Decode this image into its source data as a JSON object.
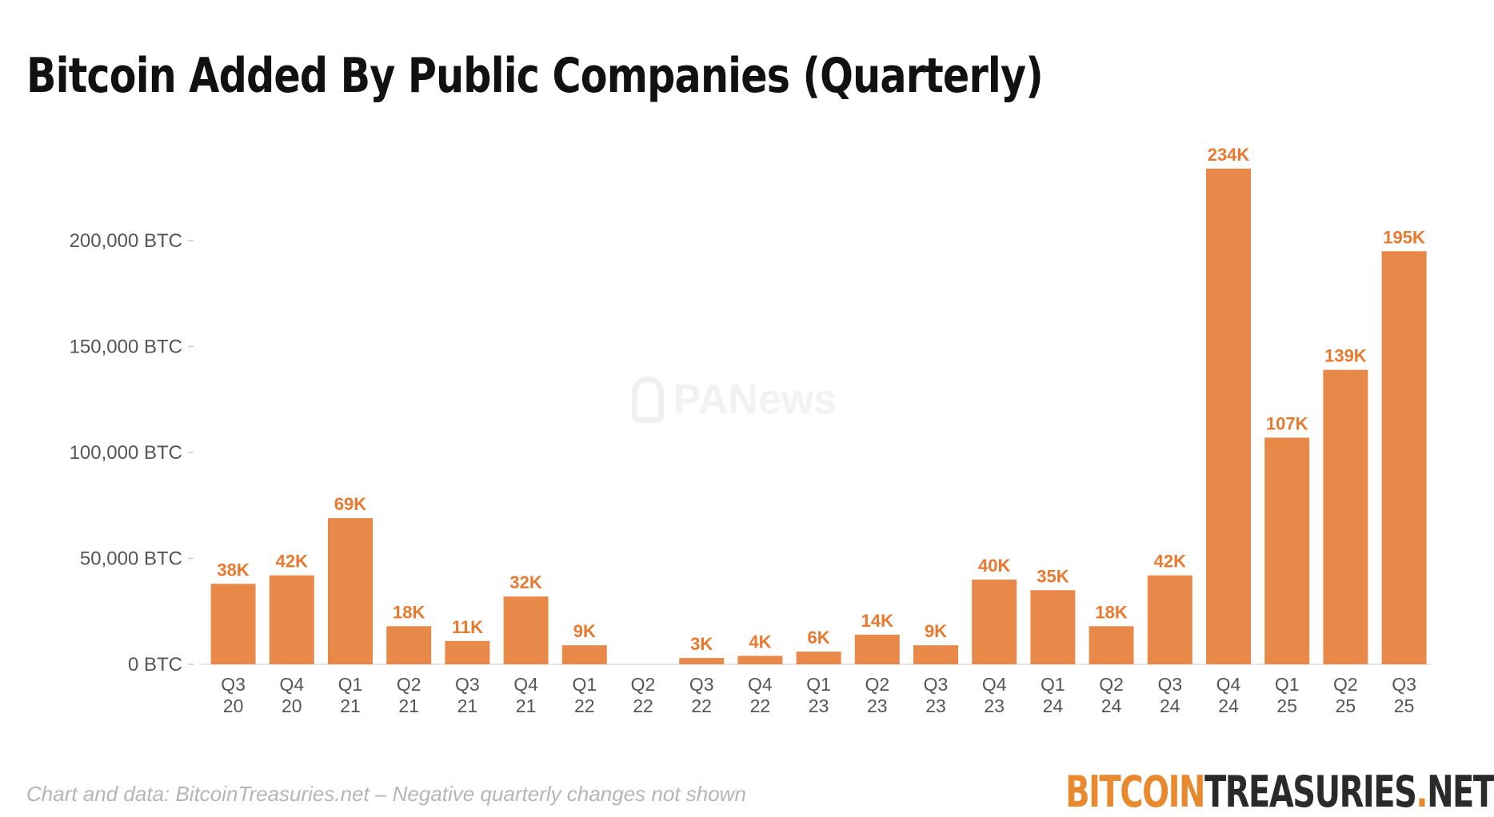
{
  "title": "Bitcoin Added By Public Companies (Quarterly)",
  "footer": {
    "note": "Chart and data: BitcoinTreasuries.net  – Negative quarterly changes not shown"
  },
  "brand": {
    "part1": "BITCOIN",
    "part2": "TREASURIES",
    "dot": ".",
    "part3": "NET"
  },
  "watermark": {
    "text": "PANews"
  },
  "colors": {
    "bar": "#e8894a",
    "label": "#e8792f",
    "axis_text": "#555555",
    "baseline": "#e6e6e6"
  },
  "chart_data": {
    "type": "bar",
    "title": "Bitcoin Added By Public Companies (Quarterly)",
    "xlabel": "",
    "ylabel": "",
    "ylim": [
      0,
      234000
    ],
    "yticks": [
      0,
      50000,
      100000,
      150000,
      200000
    ],
    "ytick_labels": [
      "0 BTC",
      "50,000 BTC",
      "100,000 BTC",
      "150,000 BTC",
      "200,000 BTC"
    ],
    "grid": false,
    "categories": [
      [
        "Q3",
        "20"
      ],
      [
        "Q4",
        "20"
      ],
      [
        "Q1",
        "21"
      ],
      [
        "Q2",
        "21"
      ],
      [
        "Q3",
        "21"
      ],
      [
        "Q4",
        "21"
      ],
      [
        "Q1",
        "22"
      ],
      [
        "Q2",
        "22"
      ],
      [
        "Q3",
        "22"
      ],
      [
        "Q4",
        "22"
      ],
      [
        "Q1",
        "23"
      ],
      [
        "Q2",
        "23"
      ],
      [
        "Q3",
        "23"
      ],
      [
        "Q4",
        "23"
      ],
      [
        "Q1",
        "24"
      ],
      [
        "Q2",
        "24"
      ],
      [
        "Q3",
        "24"
      ],
      [
        "Q4",
        "24"
      ],
      [
        "Q1",
        "25"
      ],
      [
        "Q2",
        "25"
      ],
      [
        "Q3",
        "25"
      ]
    ],
    "values": [
      38000,
      42000,
      69000,
      18000,
      11000,
      32000,
      9000,
      0,
      3000,
      4000,
      6000,
      14000,
      9000,
      40000,
      35000,
      18000,
      42000,
      234000,
      107000,
      139000,
      195000
    ],
    "data_labels": [
      "38K",
      "42K",
      "69K",
      "18K",
      "11K",
      "32K",
      "9K",
      "",
      "3K",
      "4K",
      "6K",
      "14K",
      "9K",
      "40K",
      "35K",
      "18K",
      "42K",
      "234K",
      "107K",
      "139K",
      "195K"
    ]
  }
}
